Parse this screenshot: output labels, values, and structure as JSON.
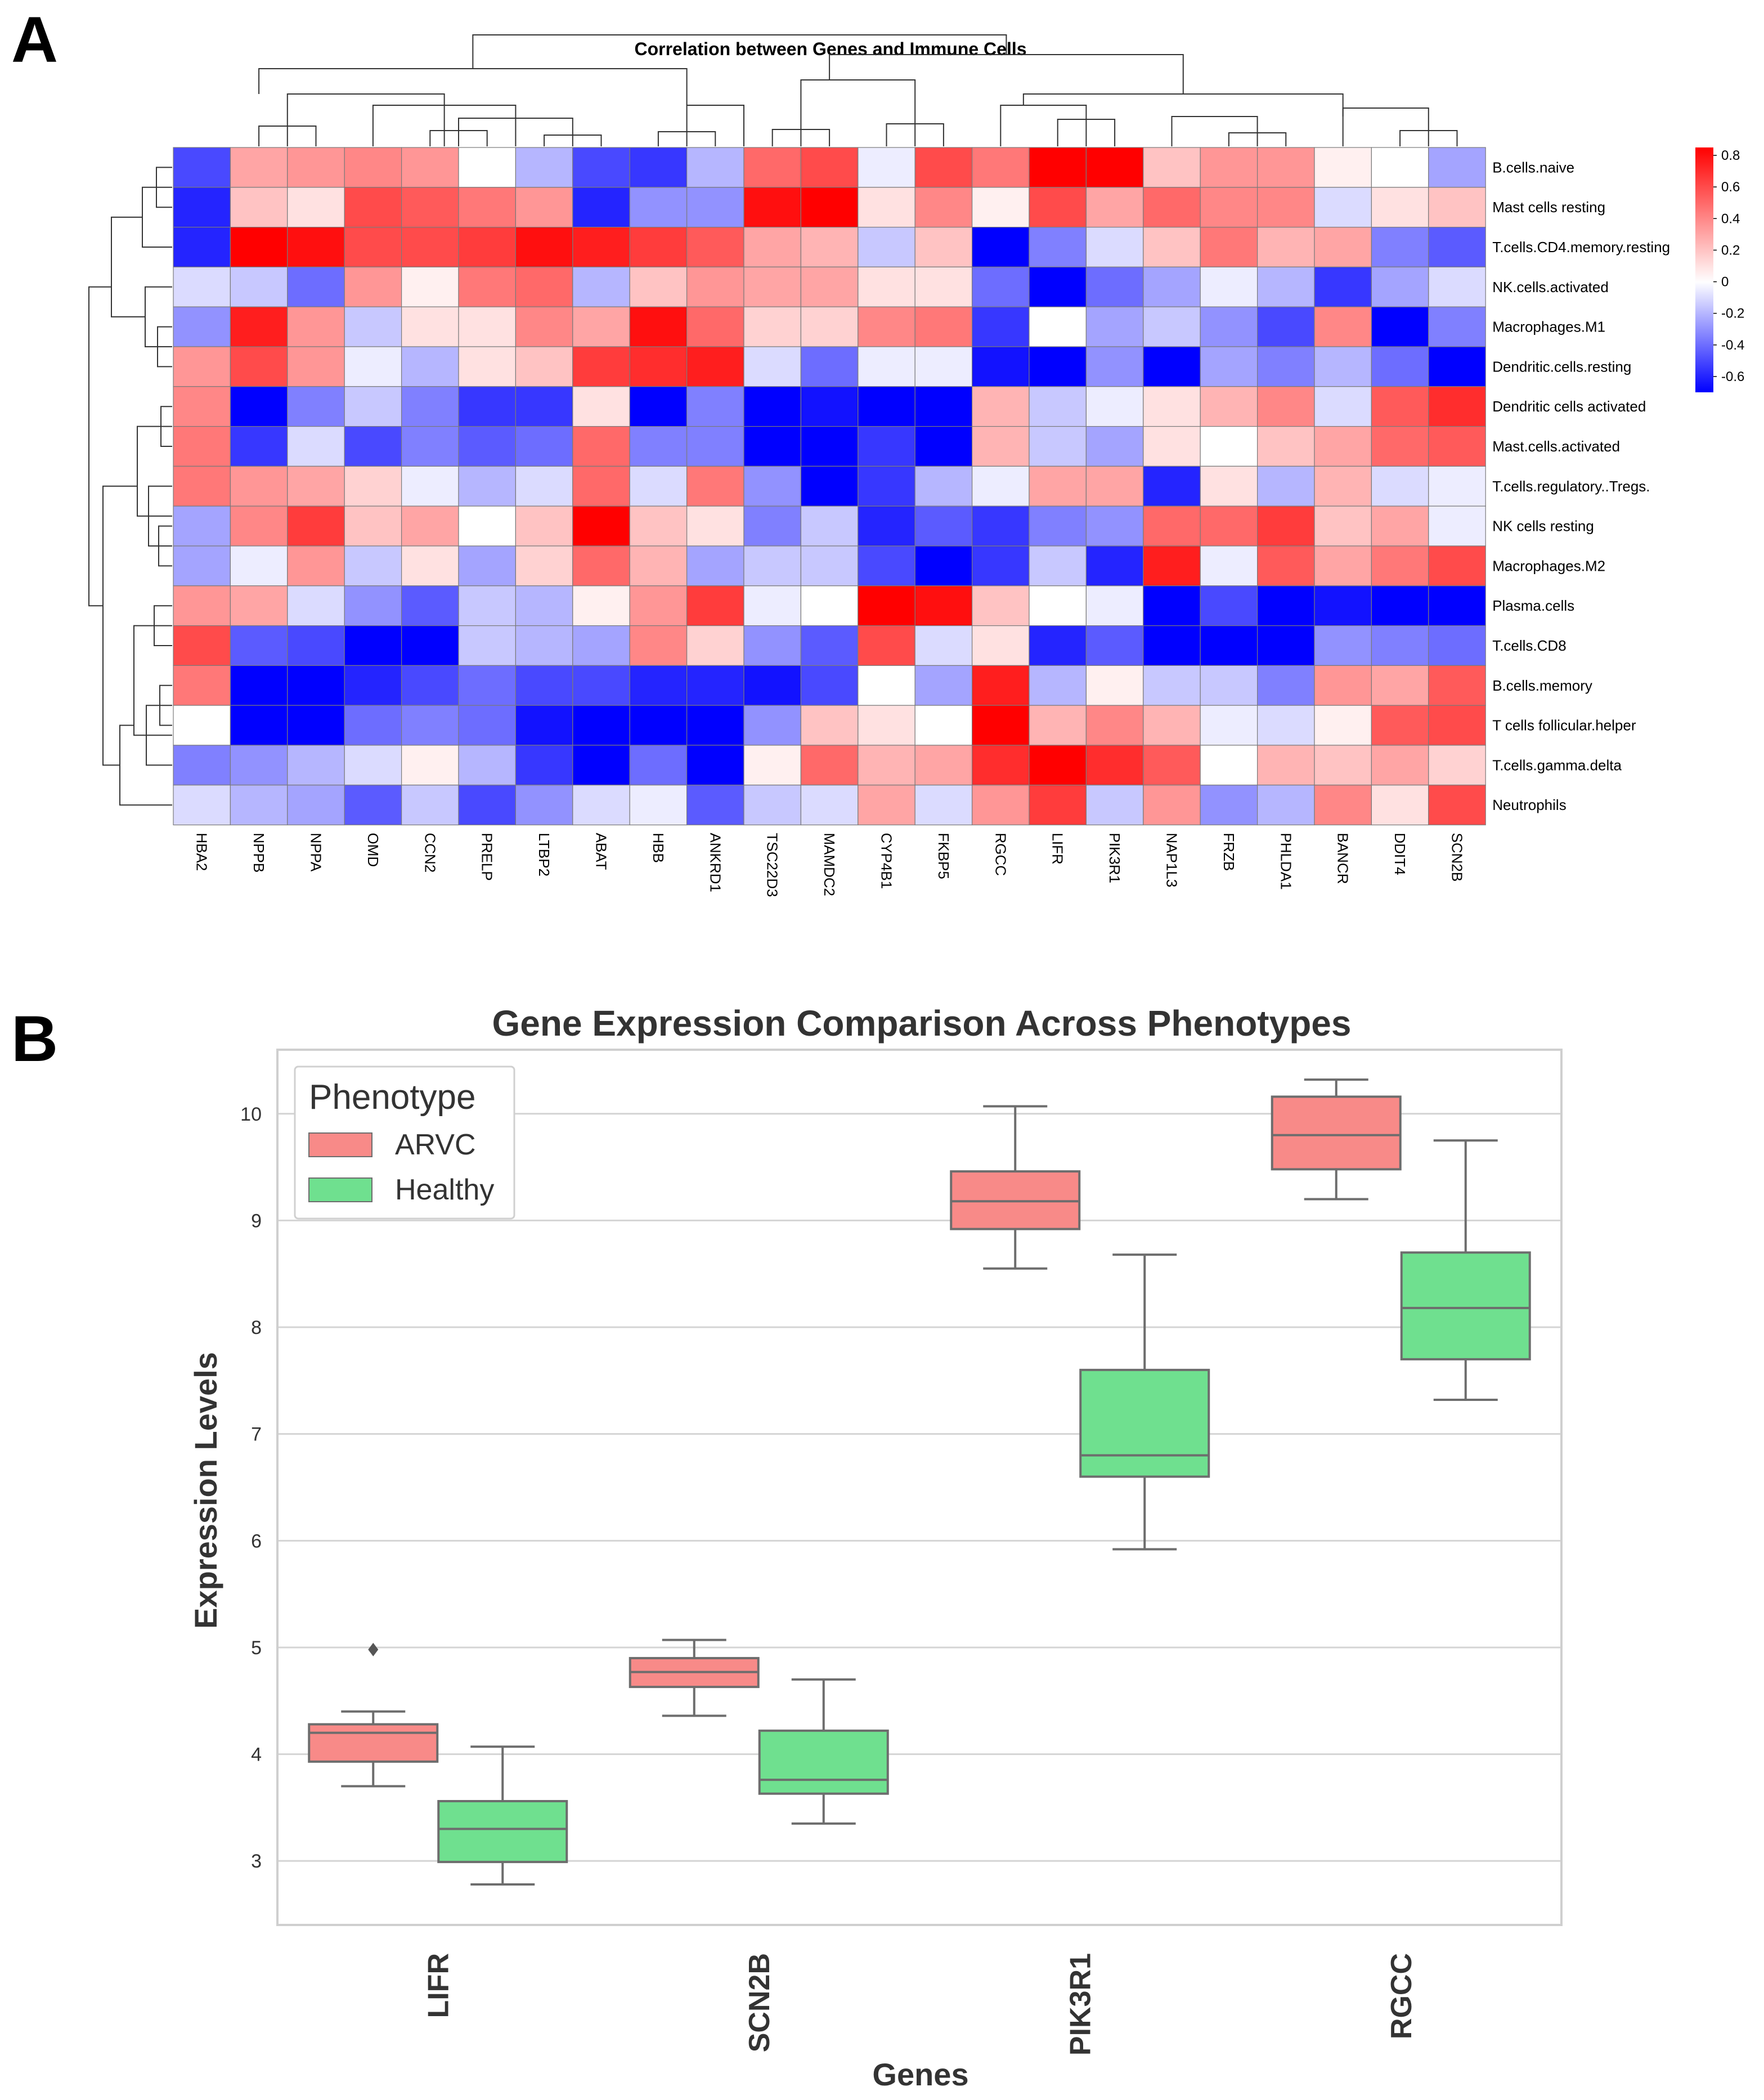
{
  "panel_a": {
    "letter": "A",
    "chart_data": {
      "type": "heatmap",
      "title": "Correlation between Genes and Immune Cells",
      "columns": [
        "HBA2",
        "NPPB",
        "NPPA",
        "OMD",
        "CCN2",
        "PRELP",
        "LTBP2",
        "ABAT",
        "HBB",
        "ANKRD1",
        "TSC22D3",
        "MAMDC2",
        "CYP4B1",
        "FKBP5",
        "RGCC",
        "LIFR",
        "PIK3R1",
        "NAP1L3",
        "FRZB",
        "PHLDA1",
        "BANCR",
        "DDIT4",
        "SCN2B"
      ],
      "rows": [
        "B.cells.naive",
        "Mast cells resting",
        "T.cells.CD4.memory.resting",
        "NK.cells.activated",
        "Macrophages.M1",
        "Dendritic.cells.resting",
        "Dendritic cells activated",
        "Mast.cells.activated",
        "T.cells.regulatory..Tregs.",
        "NK cells resting",
        "Macrophages.M2",
        "Plasma.cells",
        "T.cells.CD8",
        "B.cells.memory",
        "T cells follicular.helper",
        "T.cells.gamma.delta",
        "Neutrophils"
      ],
      "values": [
        [
          -0.5,
          0.3,
          0.35,
          0.4,
          0.35,
          0.0,
          -0.2,
          -0.5,
          -0.55,
          -0.2,
          0.5,
          0.6,
          -0.05,
          0.6,
          0.45,
          0.95,
          0.9,
          0.2,
          0.35,
          0.35,
          0.05,
          0.0,
          -0.25
        ],
        [
          -0.6,
          0.2,
          0.1,
          0.6,
          0.55,
          0.45,
          0.35,
          -0.6,
          -0.3,
          -0.3,
          0.8,
          0.85,
          0.1,
          0.4,
          0.05,
          0.6,
          0.3,
          0.5,
          0.4,
          0.4,
          -0.1,
          0.1,
          0.2
        ],
        [
          -0.6,
          0.9,
          0.8,
          0.6,
          0.6,
          0.65,
          0.8,
          0.75,
          0.65,
          0.55,
          0.3,
          0.25,
          -0.15,
          0.2,
          -0.85,
          -0.35,
          -0.1,
          0.2,
          0.45,
          0.25,
          0.3,
          -0.35,
          -0.45
        ],
        [
          -0.1,
          -0.15,
          -0.4,
          0.35,
          0.05,
          0.45,
          0.5,
          -0.2,
          0.2,
          0.35,
          0.3,
          0.3,
          0.1,
          0.1,
          -0.4,
          -0.75,
          -0.4,
          -0.25,
          -0.05,
          -0.2,
          -0.55,
          -0.25,
          -0.1
        ],
        [
          -0.3,
          0.75,
          0.35,
          -0.15,
          0.1,
          0.1,
          0.4,
          0.3,
          0.8,
          0.5,
          0.15,
          0.15,
          0.4,
          0.45,
          -0.55,
          0.0,
          -0.25,
          -0.15,
          -0.3,
          -0.5,
          0.4,
          -0.75,
          -0.35
        ],
        [
          0.35,
          0.6,
          0.35,
          -0.05,
          -0.2,
          0.1,
          0.2,
          0.65,
          0.7,
          0.75,
          -0.1,
          -0.4,
          -0.05,
          -0.05,
          -0.65,
          -0.7,
          -0.3,
          -0.7,
          -0.25,
          -0.35,
          -0.2,
          -0.4,
          -0.7
        ],
        [
          0.4,
          -0.8,
          -0.35,
          -0.15,
          -0.35,
          -0.55,
          -0.55,
          0.1,
          -0.9,
          -0.35,
          -0.7,
          -0.65,
          -0.9,
          -0.8,
          0.25,
          -0.15,
          -0.05,
          0.1,
          0.25,
          0.4,
          -0.1,
          0.55,
          0.7
        ],
        [
          0.45,
          -0.55,
          -0.1,
          -0.5,
          -0.35,
          -0.45,
          -0.4,
          0.5,
          -0.35,
          -0.35,
          -0.85,
          -0.9,
          -0.55,
          -0.85,
          0.25,
          -0.15,
          -0.25,
          0.1,
          0.0,
          0.2,
          0.3,
          0.5,
          0.55
        ],
        [
          0.45,
          0.35,
          0.3,
          0.15,
          -0.05,
          -0.2,
          -0.1,
          0.5,
          -0.1,
          0.45,
          -0.3,
          -0.85,
          -0.55,
          -0.2,
          -0.05,
          0.3,
          0.3,
          -0.6,
          0.1,
          -0.2,
          0.25,
          -0.1,
          -0.05
        ],
        [
          -0.25,
          0.4,
          0.65,
          0.2,
          0.3,
          0.0,
          0.2,
          1.0,
          0.2,
          0.1,
          -0.35,
          -0.15,
          -0.6,
          -0.45,
          -0.55,
          -0.35,
          -0.3,
          0.5,
          0.5,
          0.65,
          0.2,
          0.3,
          -0.05
        ],
        [
          -0.25,
          -0.05,
          0.35,
          -0.15,
          0.1,
          -0.25,
          0.15,
          0.5,
          0.25,
          -0.25,
          -0.15,
          -0.15,
          -0.5,
          -0.75,
          -0.55,
          -0.15,
          -0.6,
          0.75,
          -0.05,
          0.55,
          0.3,
          0.45,
          0.6
        ],
        [
          0.35,
          0.3,
          -0.1,
          -0.3,
          -0.45,
          -0.15,
          -0.2,
          0.05,
          0.35,
          0.65,
          -0.05,
          0.0,
          0.85,
          0.8,
          0.2,
          0.0,
          -0.05,
          -0.95,
          -0.5,
          -0.7,
          -0.65,
          -0.9,
          -0.95
        ],
        [
          0.6,
          -0.45,
          -0.5,
          -0.75,
          -0.7,
          -0.15,
          -0.2,
          -0.25,
          0.4,
          0.15,
          -0.3,
          -0.45,
          0.6,
          -0.1,
          0.1,
          -0.6,
          -0.45,
          -0.7,
          -0.75,
          -0.75,
          -0.3,
          -0.35,
          -0.4
        ],
        [
          0.45,
          -0.85,
          -0.75,
          -0.6,
          -0.5,
          -0.4,
          -0.5,
          -0.5,
          -0.6,
          -0.6,
          -0.65,
          -0.5,
          0.0,
          -0.25,
          0.75,
          -0.2,
          0.05,
          -0.15,
          -0.15,
          -0.35,
          0.35,
          0.3,
          0.55
        ],
        [
          0.0,
          -0.95,
          -0.9,
          -0.4,
          -0.35,
          -0.4,
          -0.65,
          -0.95,
          -0.85,
          -0.95,
          -0.3,
          0.2,
          0.1,
          0.0,
          0.85,
          0.25,
          0.4,
          0.25,
          -0.05,
          -0.1,
          0.05,
          0.55,
          0.6
        ],
        [
          -0.35,
          -0.3,
          -0.2,
          -0.1,
          0.05,
          -0.2,
          -0.55,
          -0.85,
          -0.4,
          -0.9,
          0.05,
          0.5,
          0.25,
          0.3,
          0.7,
          0.95,
          0.7,
          0.55,
          0.0,
          0.25,
          0.2,
          0.3,
          0.15
        ],
        [
          -0.1,
          -0.2,
          -0.25,
          -0.45,
          -0.15,
          -0.5,
          -0.3,
          -0.1,
          -0.05,
          -0.45,
          -0.15,
          -0.1,
          0.3,
          -0.1,
          0.35,
          0.65,
          -0.15,
          0.35,
          -0.3,
          -0.2,
          0.4,
          0.1,
          0.6
        ]
      ],
      "colorbar": {
        "min": -0.7,
        "max": 0.85,
        "ticks": [
          "0.8",
          "0.6",
          "0.4",
          "0.2",
          "0",
          "-0.2",
          "-0.4",
          "-0.6"
        ],
        "tick_values": [
          0.8,
          0.6,
          0.4,
          0.2,
          0,
          -0.2,
          -0.4,
          -0.6
        ]
      },
      "colors": {
        "low": "#0000ff",
        "mid": "#ffffff",
        "high": "#ff0000"
      },
      "dendrograms": {
        "rows": true,
        "columns": true
      }
    }
  },
  "panel_b": {
    "letter": "B",
    "chart_data": {
      "type": "box",
      "title": "Gene Expression Comparison Across Phenotypes",
      "xlabel": "Genes",
      "ylabel": "Expression Levels",
      "ylim": [
        2.4,
        10.6
      ],
      "yticks": [
        3,
        4,
        5,
        6,
        7,
        8,
        9,
        10
      ],
      "categories": [
        "LIFR",
        "SCN2B",
        "PIK3R1",
        "RGCC"
      ],
      "legend": {
        "title": "Phenotype",
        "position": "top-left"
      },
      "series": [
        {
          "name": "ARVC",
          "color": "#f88a88",
          "boxes": [
            {
              "whislo": 3.7,
              "q1": 3.93,
              "med": 4.2,
              "q3": 4.28,
              "whishi": 4.4,
              "fliers": [
                4.98
              ]
            },
            {
              "whislo": 4.36,
              "q1": 4.63,
              "med": 4.77,
              "q3": 4.9,
              "whishi": 5.07,
              "fliers": []
            },
            {
              "whislo": 8.55,
              "q1": 8.92,
              "med": 9.18,
              "q3": 9.46,
              "whishi": 10.07,
              "fliers": []
            },
            {
              "whislo": 9.2,
              "q1": 9.48,
              "med": 9.8,
              "q3": 10.16,
              "whishi": 10.32,
              "fliers": []
            }
          ]
        },
        {
          "name": "Healthy",
          "color": "#6fe08f",
          "boxes": [
            {
              "whislo": 2.78,
              "q1": 2.99,
              "med": 3.3,
              "q3": 3.56,
              "whishi": 4.07,
              "fliers": []
            },
            {
              "whislo": 3.35,
              "q1": 3.63,
              "med": 3.76,
              "q3": 4.22,
              "whishi": 4.7,
              "fliers": []
            },
            {
              "whislo": 5.92,
              "q1": 6.6,
              "med": 6.8,
              "q3": 7.6,
              "whishi": 8.68,
              "fliers": []
            },
            {
              "whislo": 7.32,
              "q1": 7.7,
              "med": 8.18,
              "q3": 8.7,
              "whishi": 9.75,
              "fliers": []
            }
          ]
        }
      ]
    }
  }
}
